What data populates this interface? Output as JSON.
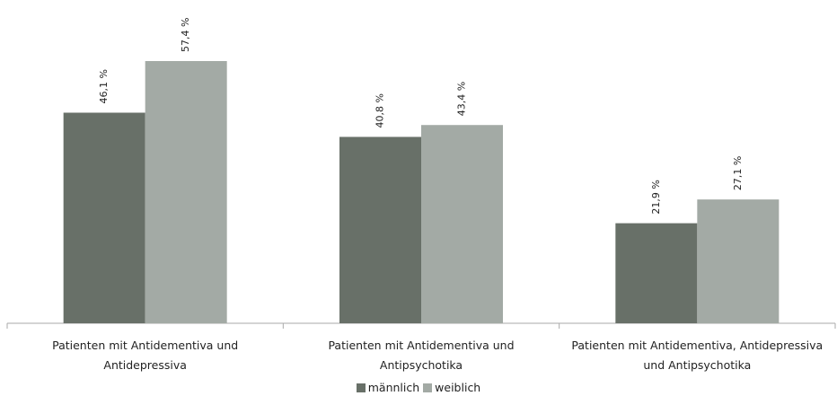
{
  "chart_data": {
    "type": "bar",
    "categories": [
      "Patienten mit Antidementiva und Antidepressiva",
      "Patienten mit Antidementiva und Antipsychotika",
      "Patienten mit Antidementiva, Antidepressiva und Antipsychotika"
    ],
    "series": [
      {
        "name": "männlich",
        "color": "#687068",
        "values": [
          46.1,
          40.8,
          21.9
        ],
        "value_labels": [
          "46,1 %",
          "40,8 %",
          "21,9 %"
        ]
      },
      {
        "name": "weiblich",
        "color": "#a3aaa5",
        "values": [
          57.4,
          43.4,
          27.1
        ],
        "value_labels": [
          "57,4 %",
          "43,4 %",
          "27,1 %"
        ]
      }
    ]
  }
}
